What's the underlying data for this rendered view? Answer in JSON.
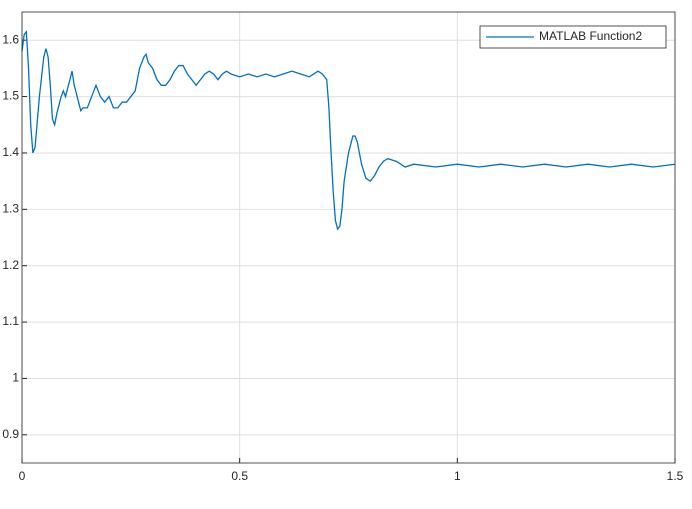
{
  "chart_data": {
    "type": "line",
    "x": [
      0,
      0.005,
      0.01,
      0.015,
      0.02,
      0.025,
      0.03,
      0.04,
      0.05,
      0.055,
      0.06,
      0.065,
      0.07,
      0.075,
      0.08,
      0.09,
      0.095,
      0.1,
      0.11,
      0.115,
      0.12,
      0.13,
      0.135,
      0.14,
      0.15,
      0.16,
      0.17,
      0.18,
      0.19,
      0.2,
      0.21,
      0.22,
      0.23,
      0.24,
      0.25,
      0.26,
      0.27,
      0.28,
      0.285,
      0.29,
      0.3,
      0.31,
      0.32,
      0.33,
      0.34,
      0.35,
      0.36,
      0.37,
      0.38,
      0.39,
      0.4,
      0.41,
      0.42,
      0.43,
      0.44,
      0.45,
      0.46,
      0.47,
      0.48,
      0.5,
      0.52,
      0.54,
      0.56,
      0.58,
      0.6,
      0.62,
      0.64,
      0.66,
      0.68,
      0.69,
      0.7,
      0.705,
      0.71,
      0.715,
      0.72,
      0.725,
      0.73,
      0.735,
      0.74,
      0.75,
      0.76,
      0.765,
      0.77,
      0.78,
      0.79,
      0.8,
      0.81,
      0.82,
      0.83,
      0.84,
      0.86,
      0.88,
      0.9,
      0.95,
      1,
      1.05,
      1.1,
      1.15,
      1.2,
      1.25,
      1.3,
      1.35,
      1.4,
      1.45,
      1.5
    ],
    "series": [
      {
        "name": "MATLAB Function2",
        "color": "#0072bd",
        "values": [
          1.58,
          1.61,
          1.615,
          1.55,
          1.45,
          1.4,
          1.41,
          1.5,
          1.57,
          1.585,
          1.57,
          1.52,
          1.46,
          1.45,
          1.47,
          1.5,
          1.51,
          1.5,
          1.53,
          1.545,
          1.52,
          1.49,
          1.475,
          1.48,
          1.48,
          1.5,
          1.52,
          1.5,
          1.49,
          1.5,
          1.48,
          1.48,
          1.49,
          1.49,
          1.5,
          1.51,
          1.55,
          1.57,
          1.575,
          1.56,
          1.55,
          1.53,
          1.52,
          1.52,
          1.53,
          1.545,
          1.555,
          1.555,
          1.54,
          1.53,
          1.52,
          1.53,
          1.54,
          1.545,
          1.54,
          1.53,
          1.54,
          1.545,
          1.54,
          1.535,
          1.54,
          1.535,
          1.54,
          1.535,
          1.54,
          1.545,
          1.54,
          1.535,
          1.545,
          1.54,
          1.53,
          1.48,
          1.4,
          1.33,
          1.28,
          1.265,
          1.27,
          1.3,
          1.35,
          1.4,
          1.43,
          1.43,
          1.42,
          1.38,
          1.355,
          1.35,
          1.36,
          1.375,
          1.385,
          1.39,
          1.385,
          1.375,
          1.38,
          1.375,
          1.38,
          1.375,
          1.38,
          1.375,
          1.38,
          1.375,
          1.38,
          1.375,
          1.38,
          1.375,
          1.38
        ]
      }
    ],
    "xlim": [
      0,
      1.5
    ],
    "xticks": [
      0,
      0.5,
      1,
      1.5
    ],
    "ylim": [
      0.85,
      1.65
    ],
    "yticks": [
      0.9,
      1,
      1.1,
      1.2,
      1.3,
      1.4,
      1.5,
      1.6
    ],
    "grid": true,
    "legend": "northeast"
  }
}
